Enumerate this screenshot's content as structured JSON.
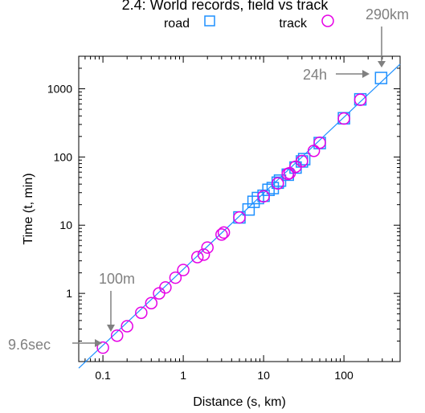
{
  "chart_data": {
    "type": "scatter",
    "title": "2.4: World records, field vs track",
    "xlabel": "Distance (s, km)",
    "ylabel": "Time (t, min)",
    "xscale": "log",
    "yscale": "log",
    "xlim": [
      0.05,
      500
    ],
    "ylim": [
      0.1,
      3000
    ],
    "xticks": [
      0.1,
      1,
      10,
      100
    ],
    "xtick_labels": [
      "0.1",
      "1",
      "10",
      "100"
    ],
    "yticks": [
      1,
      10,
      100,
      1000
    ],
    "ytick_labels": [
      "1",
      "10",
      "100",
      "1000"
    ],
    "grid": false,
    "legend_position": "top",
    "series": [
      {
        "name": "road",
        "marker": "square",
        "color": "#1e90ff",
        "x": [
          5,
          6.5,
          7.5,
          8.5,
          10,
          11.5,
          13,
          15,
          16,
          20,
          25,
          30,
          32,
          50,
          100,
          160,
          290
        ],
        "y": [
          13,
          17,
          22,
          25,
          27,
          33,
          35,
          42,
          45,
          55,
          70,
          86,
          93,
          160,
          370,
          700,
          1440
        ]
      },
      {
        "name": "track",
        "marker": "circle",
        "color": "#e600e6",
        "x": [
          0.1,
          0.15,
          0.2,
          0.3,
          0.4,
          0.5,
          0.6,
          0.8,
          1,
          1.5,
          1.8,
          2,
          3,
          3.2,
          5,
          10,
          15,
          20,
          21.1,
          25,
          30,
          42.2,
          50,
          100,
          160
        ],
        "y": [
          0.16,
          0.24,
          0.33,
          0.52,
          0.72,
          1.0,
          1.22,
          1.7,
          2.2,
          3.4,
          3.7,
          4.7,
          7.3,
          7.8,
          13,
          26.5,
          41,
          56.5,
          58,
          72,
          87,
          123,
          162,
          366,
          690
        ]
      }
    ],
    "fit_line": {
      "color": "#1e90ff",
      "x": [
        0.05,
        500
      ],
      "y": [
        0.08,
        2300
      ]
    },
    "annotations": [
      {
        "text": "290km",
        "x": 290,
        "y": 1440
      },
      {
        "text": "24h",
        "x": 290,
        "y": 1440
      },
      {
        "text": "100m",
        "x": 0.1,
        "y": 0.16
      },
      {
        "text": "9.6sec",
        "x": 0.1,
        "y": 0.16
      }
    ]
  }
}
